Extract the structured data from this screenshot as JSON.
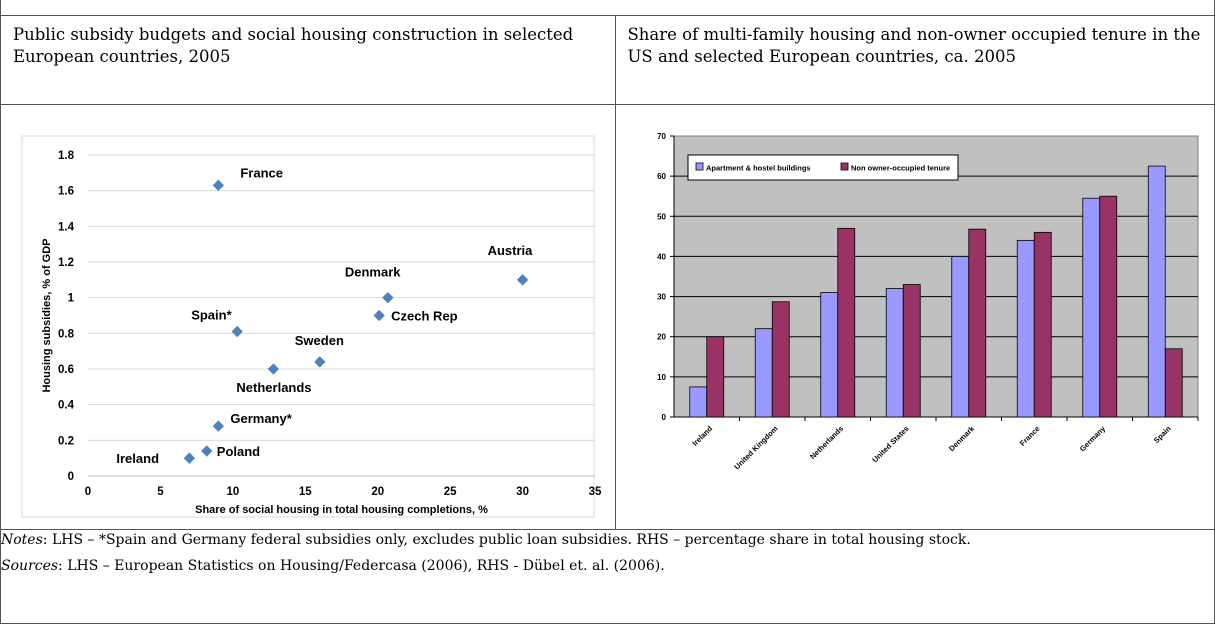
{
  "left_caption": "Public subsidy budgets and social housing construction in selected European countries, 2005",
  "right_caption": "Share of multi-family housing and non-owner occupied tenure in the US and selected European countries, ca. 2005",
  "notes": {
    "label": "Notes",
    "text": ": LHS – *Spain and Germany federal subsidies only, excludes public loan subsidies. RHS – percentage share in total housing stock."
  },
  "sources": {
    "label": "Sources",
    "text": ": LHS – European Statistics on Housing/Federcasa (2006), RHS - Dübel et. al. (2006)."
  },
  "colors": {
    "scatter_marker": "#4f81bd",
    "bar_series_1": "#9999ff",
    "bar_series_2": "#993366",
    "plot_bg": "#c0c0c0"
  },
  "chart_data": [
    {
      "type": "scatter",
      "title": "",
      "xlabel": "Share of social housing in total housing completions, %",
      "ylabel": "Housing subsidies, % of GDP",
      "xlim": [
        0,
        35
      ],
      "ylim": [
        0,
        1.8
      ],
      "x_ticks": [
        "0",
        "5",
        "10",
        "15",
        "20",
        "25",
        "30",
        "35"
      ],
      "y_ticks": [
        "0",
        "0.2",
        "0.4",
        "0.6",
        "0.8",
        "1",
        "1.2",
        "1.4",
        "1.6",
        "1.8"
      ],
      "grid": true,
      "points": [
        {
          "label": "France",
          "x": 9,
          "y": 1.63
        },
        {
          "label": "Austria",
          "x": 30,
          "y": 1.1
        },
        {
          "label": "Denmark",
          "x": 20.7,
          "y": 1.0
        },
        {
          "label": "Czech Rep",
          "x": 20.1,
          "y": 0.9
        },
        {
          "label": "Spain*",
          "x": 10.3,
          "y": 0.81
        },
        {
          "label": "Sweden",
          "x": 16,
          "y": 0.64
        },
        {
          "label": "Netherlands",
          "x": 12.8,
          "y": 0.6
        },
        {
          "label": "Germany*",
          "x": 9,
          "y": 0.28
        },
        {
          "label": "Poland",
          "x": 8.2,
          "y": 0.14
        },
        {
          "label": "Ireland",
          "x": 7,
          "y": 0.1
        }
      ]
    },
    {
      "type": "bar",
      "title": "",
      "categories": [
        "Ireland",
        "United Kingdom",
        "Netherlands",
        "United States",
        "Denmark",
        "France",
        "Germany",
        "Spain"
      ],
      "series": [
        {
          "name": "Apartment & hostel buildings",
          "values": [
            7.5,
            22,
            31,
            32,
            40,
            44,
            54.5,
            62.5
          ]
        },
        {
          "name": "Non owner-occupied tenure",
          "values": [
            20,
            28.7,
            47,
            33,
            46.8,
            46,
            55,
            17
          ]
        }
      ],
      "ylim": [
        0,
        70
      ],
      "y_ticks": [
        "0",
        "10",
        "20",
        "30",
        "40",
        "50",
        "60",
        "70"
      ],
      "grid": true,
      "legend": "top-left"
    }
  ]
}
